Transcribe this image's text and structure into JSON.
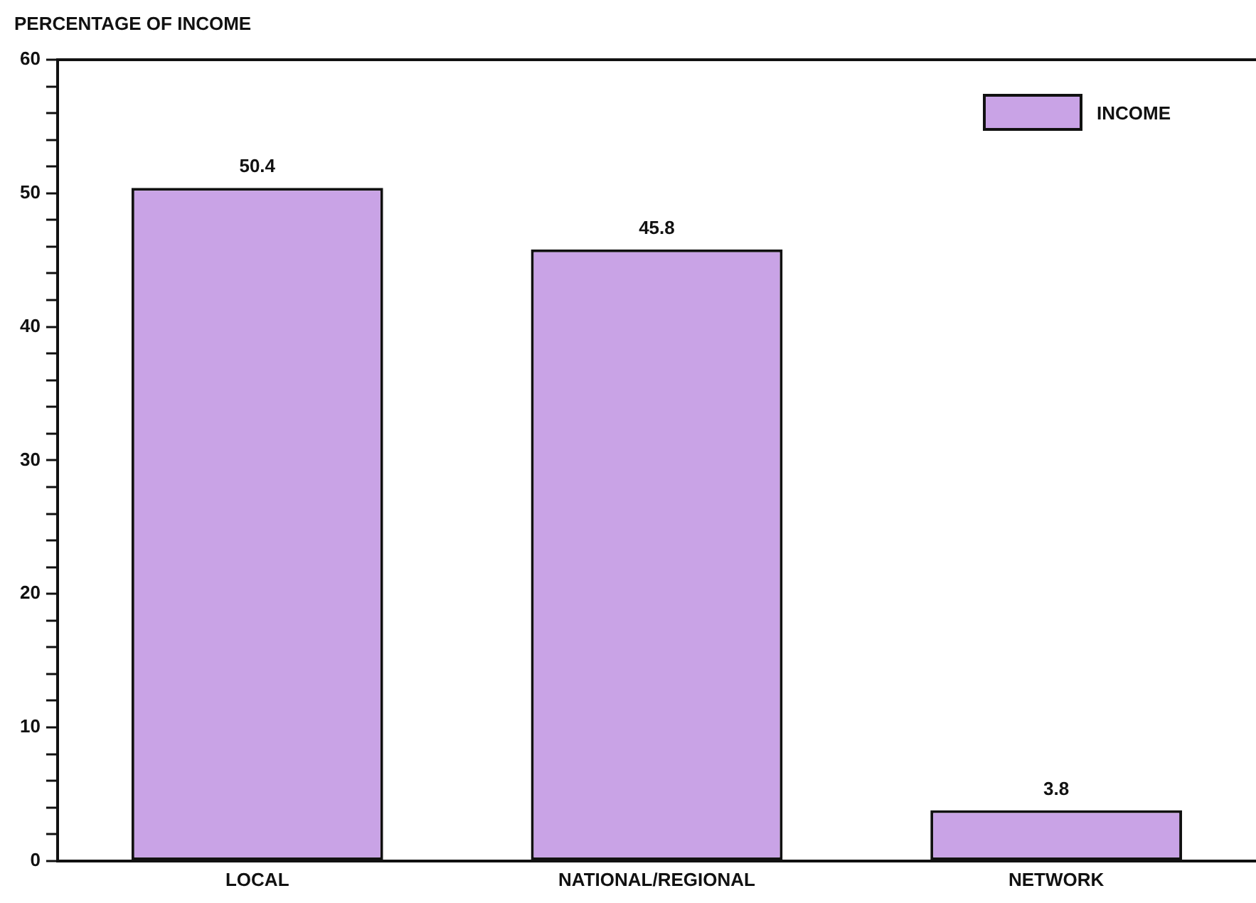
{
  "chart_data": {
    "type": "bar",
    "ylabel": "PERCENTAGE OF INCOME",
    "categories": [
      "LOCAL",
      "NATIONAL/REGIONAL",
      "NETWORK"
    ],
    "series": [
      {
        "name": "INCOME",
        "color": "#c9a3e6",
        "values": [
          50.4,
          45.8,
          3.8
        ]
      }
    ],
    "ylim": [
      0,
      60
    ],
    "yticks": [
      0,
      {
        "value": 2,
        "label": null
      },
      {
        "value": 4,
        "label": null
      },
      {
        "value": 6,
        "label": null
      },
      {
        "value": 8,
        "label": null
      },
      10,
      {
        "value": 12,
        "label": null
      },
      {
        "value": 14,
        "label": null
      },
      {
        "value": 16,
        "label": null
      },
      {
        "value": 18,
        "label": null
      },
      20,
      {
        "value": 22,
        "label": null
      },
      {
        "value": 24,
        "label": null
      },
      {
        "value": 26,
        "label": null
      },
      {
        "value": 28,
        "label": null
      },
      30,
      {
        "value": 32,
        "label": null
      },
      {
        "value": 34,
        "label": null
      },
      {
        "value": 36,
        "label": null
      },
      {
        "value": 38,
        "label": null
      },
      40,
      {
        "value": 42,
        "label": null
      },
      {
        "value": 44,
        "label": null
      },
      {
        "value": 46,
        "label": null
      },
      {
        "value": 48,
        "label": null
      },
      50,
      {
        "value": 52,
        "label": null
      },
      {
        "value": 54,
        "label": null
      },
      {
        "value": 56,
        "label": null
      },
      {
        "value": 58,
        "label": null
      },
      60
    ],
    "grid": false,
    "legend": "top right",
    "data_labels": true
  }
}
